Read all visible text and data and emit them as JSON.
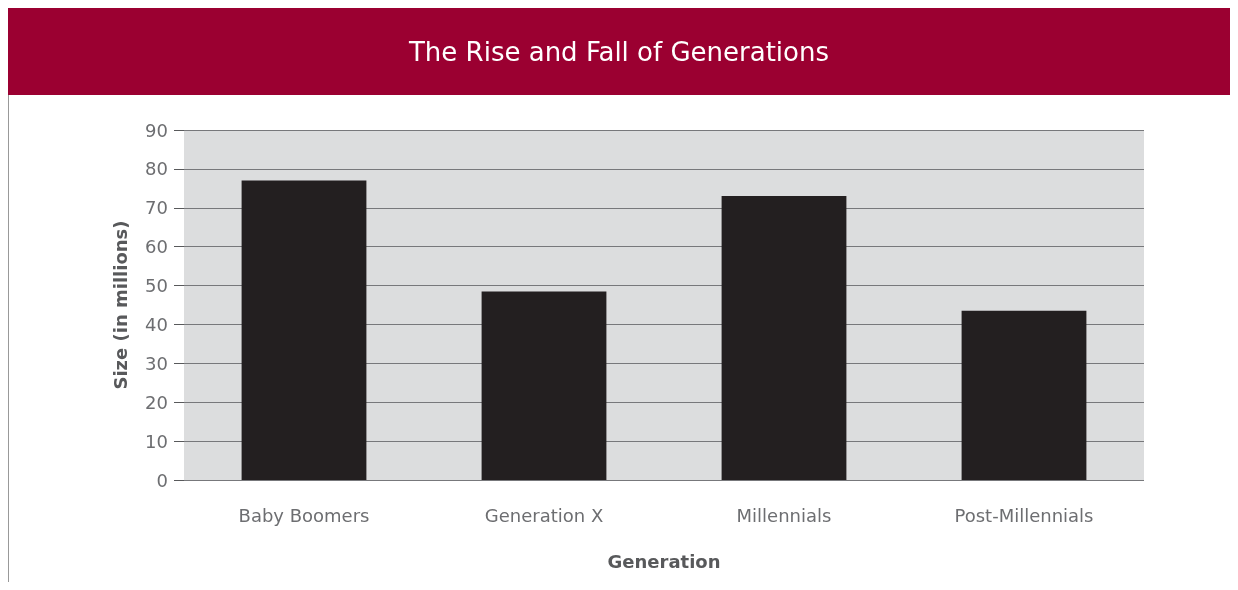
{
  "chart_data": {
    "type": "bar",
    "title": "The Rise and Fall of Generations",
    "xlabel": "Generation",
    "ylabel": "Size (in millions)",
    "categories": [
      "Baby Boomers",
      "Generation X",
      "Millennials",
      "Post-Millennials"
    ],
    "values": [
      77,
      48.5,
      73,
      43.5
    ],
    "color": "#231f20",
    "ylim": [
      0,
      90
    ],
    "yticks": [
      0,
      10,
      20,
      30,
      40,
      50,
      60,
      70,
      80,
      90
    ],
    "grid": "y"
  }
}
